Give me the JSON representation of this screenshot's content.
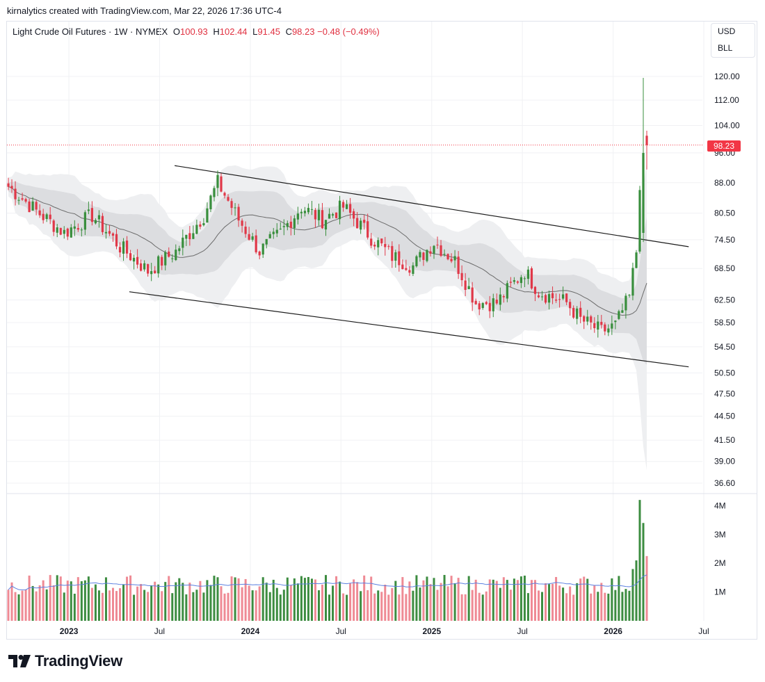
{
  "header": {
    "credit": "kirnalytics created with TradingView.com, Mar 22, 2026 17:36 UTC-4"
  },
  "legend": {
    "symbol": "Light Crude Oil Futures · 1W · NYMEX",
    "o_label": "O",
    "o_value": "100.93",
    "h_label": "H",
    "h_value": "102.44",
    "l_label": "L",
    "l_value": "91.45",
    "c_label": "C",
    "c_value": "98.23",
    "change": "−0.48 (−0.49%)"
  },
  "units": {
    "currency": "USD",
    "unit": "BLL"
  },
  "last_price": "98.23",
  "brand": {
    "name": "TradingView"
  },
  "colors": {
    "up": "#388e3c",
    "down": "#e03848",
    "up_vol": "#3c8c40",
    "down_vol": "#ef8a94",
    "band_outer": "#eeeff1",
    "band_inner": "#dcdde0",
    "ma": "#6b6b6b",
    "vol_ma": "#5b7fe0",
    "trend": "#1a1a1a",
    "last": "#f23645"
  },
  "chart_data": {
    "type": "candlestick",
    "title": "Light Crude Oil Futures · 1W · NYMEX",
    "price_axis_labels": [
      "120.00",
      "112.00",
      "104.00",
      "96.00",
      "88.00",
      "80.50",
      "74.50",
      "68.50",
      "62.50",
      "58.50",
      "54.50",
      "50.50",
      "47.50",
      "44.50",
      "41.50",
      "39.00",
      "36.60"
    ],
    "volume_axis_labels": [
      "4M",
      "3M",
      "2M",
      "1M"
    ],
    "time_axis_labels": [
      {
        "label": "2023",
        "bold": true
      },
      {
        "label": "Jul",
        "bold": false
      },
      {
        "label": "2024",
        "bold": true
      },
      {
        "label": "Jul",
        "bold": false
      },
      {
        "label": "2025",
        "bold": true
      },
      {
        "label": "Jul",
        "bold": false
      },
      {
        "label": "2026",
        "bold": true
      },
      {
        "label": "Jul",
        "bold": false
      }
    ],
    "date_range": [
      "2022-09",
      "2026-03"
    ],
    "weeks": 184,
    "anchors": [
      {
        "w": 0,
        "p": 87
      },
      {
        "w": 8,
        "p": 81
      },
      {
        "w": 16,
        "p": 76
      },
      {
        "w": 24,
        "p": 80
      },
      {
        "w": 32,
        "p": 73
      },
      {
        "w": 40,
        "p": 68
      },
      {
        "w": 48,
        "p": 72
      },
      {
        "w": 56,
        "p": 80
      },
      {
        "w": 60,
        "p": 88
      },
      {
        "w": 66,
        "p": 79
      },
      {
        "w": 72,
        "p": 72
      },
      {
        "w": 78,
        "p": 76
      },
      {
        "w": 84,
        "p": 82
      },
      {
        "w": 90,
        "p": 79
      },
      {
        "w": 96,
        "p": 82
      },
      {
        "w": 104,
        "p": 75
      },
      {
        "w": 110,
        "p": 71
      },
      {
        "w": 116,
        "p": 69
      },
      {
        "w": 122,
        "p": 74
      },
      {
        "w": 128,
        "p": 70
      },
      {
        "w": 134,
        "p": 62
      },
      {
        "w": 140,
        "p": 62
      },
      {
        "w": 144,
        "p": 65
      },
      {
        "w": 148,
        "p": 68
      },
      {
        "w": 152,
        "p": 64
      },
      {
        "w": 160,
        "p": 62
      },
      {
        "w": 164,
        "p": 59
      },
      {
        "w": 170,
        "p": 57
      },
      {
        "w": 174,
        "p": 58
      },
      {
        "w": 178,
        "p": 63
      },
      {
        "w": 180,
        "p": 72
      },
      {
        "w": 181,
        "p": 88
      },
      {
        "w": 182,
        "p": 96
      },
      {
        "w": 183,
        "p": 98.23
      }
    ],
    "last_candle": {
      "open": 100.93,
      "high": 102.44,
      "low": 91.45,
      "close": 98.23
    },
    "spike_high": 119.5,
    "channel": {
      "upper": [
        {
          "date": "2023-08",
          "price": 92.5
        },
        {
          "date": "2026-06",
          "price": 73.0
        }
      ],
      "lower": [
        {
          "date": "2023-05",
          "price": 64.0
        },
        {
          "date": "2026-06",
          "price": 51.4
        }
      ]
    },
    "volume_range_millions": [
      0,
      4.3
    ]
  }
}
